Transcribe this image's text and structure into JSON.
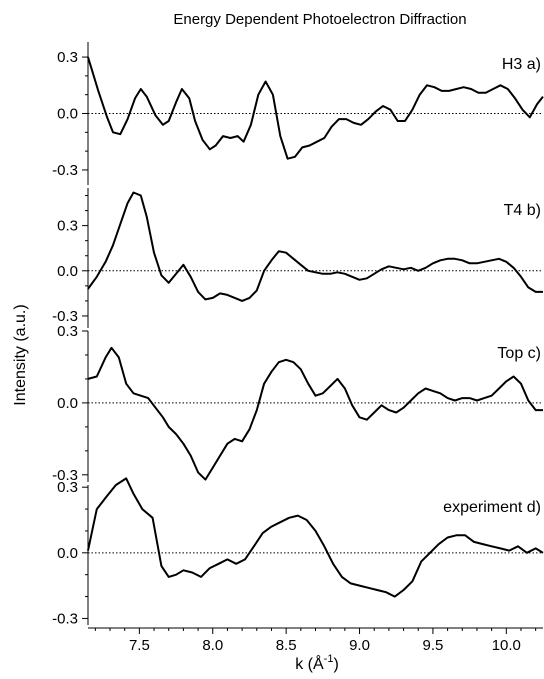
{
  "chart_data": {
    "type": "line",
    "title": "Energy Dependent Photoelectron Diffraction",
    "xlabel": "k (Å",
    "xlabel_sup": "-1",
    "xlabel_close": ")",
    "ylabel": "Intensity (a.u.)",
    "xlim": [
      7.15,
      10.25
    ],
    "xticks": [
      7.5,
      8.0,
      8.5,
      9.0,
      9.5,
      10.0
    ],
    "xtick_labels": [
      "7.5",
      "8.0",
      "8.5",
      "9.0",
      "9.5",
      "10.0"
    ],
    "zero_reference": "dotted",
    "panels": [
      {
        "label": "H3 a)",
        "ylim": [
          -0.38,
          0.38
        ],
        "yticks": [
          0.3,
          0.0,
          -0.3
        ],
        "ytick_labels": [
          "0.3",
          "0.0",
          "-0.3"
        ],
        "x": [
          7.15,
          7.22,
          7.28,
          7.32,
          7.37,
          7.42,
          7.47,
          7.51,
          7.55,
          7.61,
          7.66,
          7.7,
          7.75,
          7.79,
          7.84,
          7.88,
          7.93,
          7.98,
          8.02,
          8.07,
          8.12,
          8.17,
          8.21,
          8.26,
          8.31,
          8.36,
          8.41,
          8.46,
          8.51,
          8.56,
          8.61,
          8.66,
          8.71,
          8.76,
          8.81,
          8.86,
          8.91,
          8.96,
          9.01,
          9.06,
          9.11,
          9.16,
          9.21,
          9.26,
          9.31,
          9.36,
          9.41,
          9.46,
          9.51,
          9.56,
          9.61,
          9.66,
          9.71,
          9.76,
          9.81,
          9.86,
          9.91,
          9.96,
          10.01,
          10.06,
          10.11,
          10.16,
          10.21,
          10.25
        ],
        "y": [
          0.3,
          0.12,
          -0.02,
          -0.1,
          -0.11,
          -0.03,
          0.08,
          0.13,
          0.09,
          -0.01,
          -0.06,
          -0.04,
          0.06,
          0.13,
          0.08,
          -0.04,
          -0.14,
          -0.19,
          -0.17,
          -0.12,
          -0.13,
          -0.12,
          -0.15,
          -0.06,
          0.1,
          0.17,
          0.1,
          -0.12,
          -0.24,
          -0.23,
          -0.18,
          -0.17,
          -0.15,
          -0.13,
          -0.07,
          -0.03,
          -0.03,
          -0.05,
          -0.06,
          -0.03,
          0.01,
          0.04,
          0.02,
          -0.04,
          -0.04,
          0.02,
          0.1,
          0.15,
          0.14,
          0.12,
          0.12,
          0.13,
          0.14,
          0.13,
          0.11,
          0.11,
          0.13,
          0.15,
          0.13,
          0.08,
          0.02,
          -0.02,
          0.05,
          0.09
        ]
      },
      {
        "label": "T4 b)",
        "ylim": [
          -0.38,
          0.55
        ],
        "yticks": [
          0.3,
          0.0,
          -0.3
        ],
        "ytick_labels": [
          "0.3",
          "0.0",
          "-0.3"
        ],
        "x": [
          7.15,
          7.21,
          7.27,
          7.32,
          7.37,
          7.42,
          7.46,
          7.51,
          7.55,
          7.6,
          7.65,
          7.7,
          7.75,
          7.8,
          7.85,
          7.9,
          7.95,
          8.0,
          8.05,
          8.1,
          8.15,
          8.2,
          8.25,
          8.3,
          8.35,
          8.4,
          8.45,
          8.5,
          8.55,
          8.6,
          8.65,
          8.7,
          8.75,
          8.8,
          8.85,
          8.9,
          8.95,
          9.0,
          9.05,
          9.1,
          9.15,
          9.2,
          9.25,
          9.3,
          9.35,
          9.4,
          9.45,
          9.5,
          9.55,
          9.6,
          9.65,
          9.7,
          9.75,
          9.8,
          9.85,
          9.9,
          9.95,
          10.0,
          10.05,
          10.1,
          10.15,
          10.2,
          10.25
        ],
        "y": [
          -0.12,
          -0.04,
          0.06,
          0.17,
          0.31,
          0.45,
          0.52,
          0.5,
          0.36,
          0.12,
          -0.03,
          -0.08,
          -0.02,
          0.04,
          -0.04,
          -0.14,
          -0.19,
          -0.18,
          -0.15,
          -0.16,
          -0.18,
          -0.2,
          -0.18,
          -0.13,
          0.0,
          0.07,
          0.13,
          0.12,
          0.08,
          0.04,
          0.0,
          -0.01,
          -0.02,
          -0.02,
          -0.01,
          -0.02,
          -0.04,
          -0.06,
          -0.05,
          -0.02,
          0.01,
          0.03,
          0.02,
          0.01,
          0.02,
          0.0,
          0.02,
          0.05,
          0.07,
          0.08,
          0.08,
          0.07,
          0.05,
          0.05,
          0.06,
          0.07,
          0.08,
          0.06,
          0.02,
          -0.04,
          -0.11,
          -0.14,
          -0.14
        ]
      },
      {
        "label": "Top c)",
        "ylim": [
          -0.33,
          0.3
        ],
        "yticks": [
          0.3,
          0.0,
          -0.3
        ],
        "ytick_labels": [
          "0.3",
          "0.0",
          "-0.3"
        ],
        "x": [
          7.15,
          7.21,
          7.27,
          7.31,
          7.36,
          7.41,
          7.46,
          7.51,
          7.56,
          7.61,
          7.66,
          7.7,
          7.75,
          7.8,
          7.85,
          7.9,
          7.95,
          8.0,
          8.05,
          8.1,
          8.15,
          8.2,
          8.25,
          8.3,
          8.35,
          8.4,
          8.45,
          8.5,
          8.55,
          8.6,
          8.65,
          8.7,
          8.75,
          8.8,
          8.85,
          8.9,
          8.95,
          9.0,
          9.05,
          9.1,
          9.15,
          9.2,
          9.25,
          9.3,
          9.35,
          9.4,
          9.45,
          9.5,
          9.55,
          9.6,
          9.65,
          9.7,
          9.75,
          9.8,
          9.85,
          9.9,
          9.95,
          10.0,
          10.05,
          10.1,
          10.15,
          10.2,
          10.25
        ],
        "y": [
          0.1,
          0.11,
          0.19,
          0.23,
          0.19,
          0.08,
          0.04,
          0.03,
          0.02,
          -0.02,
          -0.06,
          -0.1,
          -0.13,
          -0.17,
          -0.22,
          -0.29,
          -0.32,
          -0.27,
          -0.22,
          -0.17,
          -0.15,
          -0.16,
          -0.11,
          -0.03,
          0.08,
          0.13,
          0.17,
          0.18,
          0.17,
          0.14,
          0.08,
          0.03,
          0.04,
          0.07,
          0.1,
          0.06,
          -0.01,
          -0.06,
          -0.07,
          -0.04,
          -0.01,
          -0.03,
          -0.04,
          -0.02,
          0.01,
          0.04,
          0.06,
          0.05,
          0.04,
          0.02,
          0.01,
          0.02,
          0.02,
          0.01,
          0.02,
          0.03,
          0.06,
          0.09,
          0.11,
          0.08,
          0.01,
          -0.03,
          -0.03
        ]
      },
      {
        "label": "experiment d)",
        "ylim": [
          -0.33,
          0.31
        ],
        "yticks": [
          0.3,
          0.0,
          -0.3
        ],
        "ytick_labels": [
          "0.3",
          "0.0",
          "-0.3"
        ],
        "x": [
          7.15,
          7.21,
          7.28,
          7.34,
          7.41,
          7.46,
          7.52,
          7.59,
          7.65,
          7.7,
          7.75,
          7.8,
          7.86,
          7.92,
          7.98,
          8.04,
          8.1,
          8.16,
          8.22,
          8.28,
          8.34,
          8.4,
          8.46,
          8.52,
          8.58,
          8.64,
          8.7,
          8.76,
          8.82,
          8.88,
          8.94,
          9.0,
          9.06,
          9.12,
          9.18,
          9.24,
          9.3,
          9.36,
          9.42,
          9.48,
          9.54,
          9.6,
          9.66,
          9.72,
          9.78,
          9.84,
          9.9,
          9.96,
          10.02,
          10.08,
          10.14,
          10.2,
          10.25
        ],
        "y": [
          0.01,
          0.2,
          0.26,
          0.31,
          0.34,
          0.27,
          0.2,
          0.16,
          -0.06,
          -0.11,
          -0.1,
          -0.08,
          -0.09,
          -0.11,
          -0.07,
          -0.05,
          -0.03,
          -0.05,
          -0.03,
          0.03,
          0.09,
          0.12,
          0.14,
          0.16,
          0.17,
          0.15,
          0.1,
          0.03,
          -0.05,
          -0.11,
          -0.14,
          -0.15,
          -0.16,
          -0.17,
          -0.18,
          -0.2,
          -0.17,
          -0.13,
          -0.04,
          0.0,
          0.04,
          0.07,
          0.08,
          0.08,
          0.05,
          0.04,
          0.03,
          0.02,
          0.01,
          0.03,
          0.0,
          0.02,
          0.0
        ]
      }
    ]
  }
}
